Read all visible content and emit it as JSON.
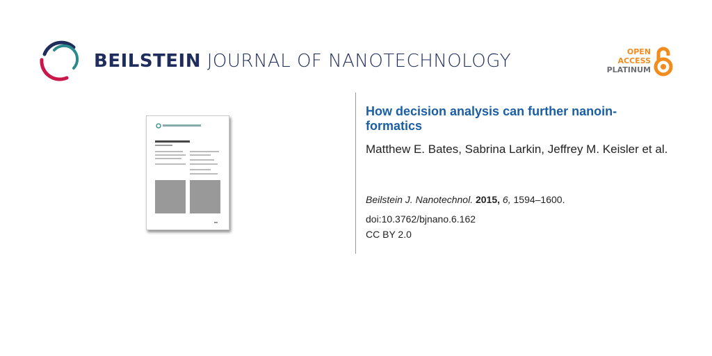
{
  "journal": {
    "name_bold": "BEILSTEIN",
    "name_rest": "JOURNAL OF NANOTECHNOLOGY"
  },
  "badge": {
    "line1": "OPEN",
    "line2": "ACCESS",
    "line3": "PLATINUM",
    "accent": "#f28c1e"
  },
  "article": {
    "title": "How decision analysis can further nanoin-formatics",
    "authors": "Matthew E. Bates, Sabrina Larkin, Jeffrey M. Keisler et al.",
    "journal_abbr": "Beilstein J. Nanotechnol.",
    "year": "2015,",
    "volume": "6,",
    "pages": "1594–1600.",
    "doi": "doi:10.3762/bjnano.6.162",
    "license": "CC BY 2.0"
  },
  "colors": {
    "title": "#1a5fa6",
    "brand": "#1f2d5c"
  }
}
